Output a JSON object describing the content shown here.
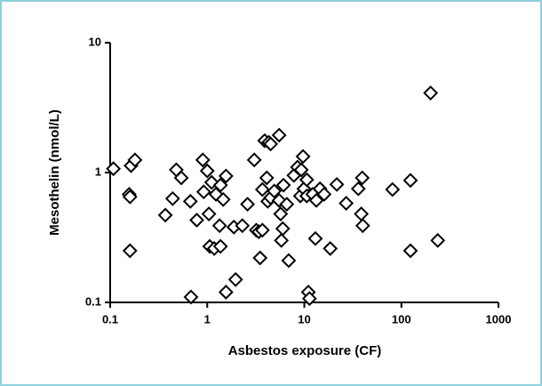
{
  "chart_data": {
    "type": "scatter",
    "x_label": "Asbestos exposure (CF)",
    "y_label": "Mesothelin (nmol/L)",
    "x_scale": "log",
    "y_scale": "log",
    "xlim": [
      0.1,
      1000
    ],
    "ylim": [
      0.1,
      10
    ],
    "xticks": [
      0.1,
      1,
      10,
      100,
      1000
    ],
    "yticks": [
      0.1,
      1,
      10
    ],
    "color": "#000000",
    "marker": "diamond",
    "x": [
      0.108,
      0.157,
      0.16,
      0.16,
      0.164,
      0.18,
      0.37,
      0.44,
      0.48,
      0.54,
      0.67,
      0.68,
      0.78,
      0.9,
      0.92,
      1.0,
      1.04,
      1.06,
      1.11,
      1.18,
      1.23,
      1.34,
      1.37,
      1.37,
      1.56,
      1.46,
      1.56,
      1.96,
      1.88,
      2.3,
      2.6,
      3.05,
      3.2,
      3.4,
      3.5,
      3.7,
      3.7,
      3.9,
      4.3,
      4.1,
      4.2,
      4.5,
      4.5,
      4.9,
      5.5,
      5.5,
      5.7,
      5.8,
      6.0,
      6.1,
      6.6,
      6.9,
      7.8,
      8.5,
      9.1,
      9.3,
      9.7,
      9.9,
      10.6,
      10.6,
      11,
      11.3,
      12.2,
      13,
      13.3,
      14.5,
      16,
      18.5,
      21.6,
      27,
      36,
      38.6,
      39.5,
      40,
      81,
      124,
      124,
      200,
      237
    ],
    "y": [
      1.07,
      0.68,
      0.65,
      0.25,
      1.13,
      1.25,
      0.47,
      0.63,
      1.05,
      0.91,
      0.6,
      0.11,
      0.43,
      1.25,
      0.71,
      1.03,
      0.48,
      0.27,
      0.84,
      0.26,
      0.68,
      0.39,
      0.27,
      0.8,
      0.94,
      0.62,
      0.12,
      0.15,
      0.38,
      0.39,
      0.57,
      1.25,
      0.36,
      0.35,
      0.22,
      0.36,
      0.74,
      1.76,
      1.71,
      0.91,
      0.6,
      0.64,
      1.66,
      0.72,
      1.94,
      0.61,
      0.48,
      0.3,
      0.37,
      0.8,
      0.57,
      0.21,
      0.95,
      1.1,
      0.66,
      1.05,
      1.33,
      0.75,
      0.88,
      0.66,
      0.12,
      0.107,
      0.68,
      0.31,
      0.61,
      0.75,
      0.68,
      0.26,
      0.81,
      0.58,
      0.75,
      0.48,
      0.91,
      0.39,
      0.74,
      0.87,
      0.25,
      4.1,
      0.3
    ]
  }
}
